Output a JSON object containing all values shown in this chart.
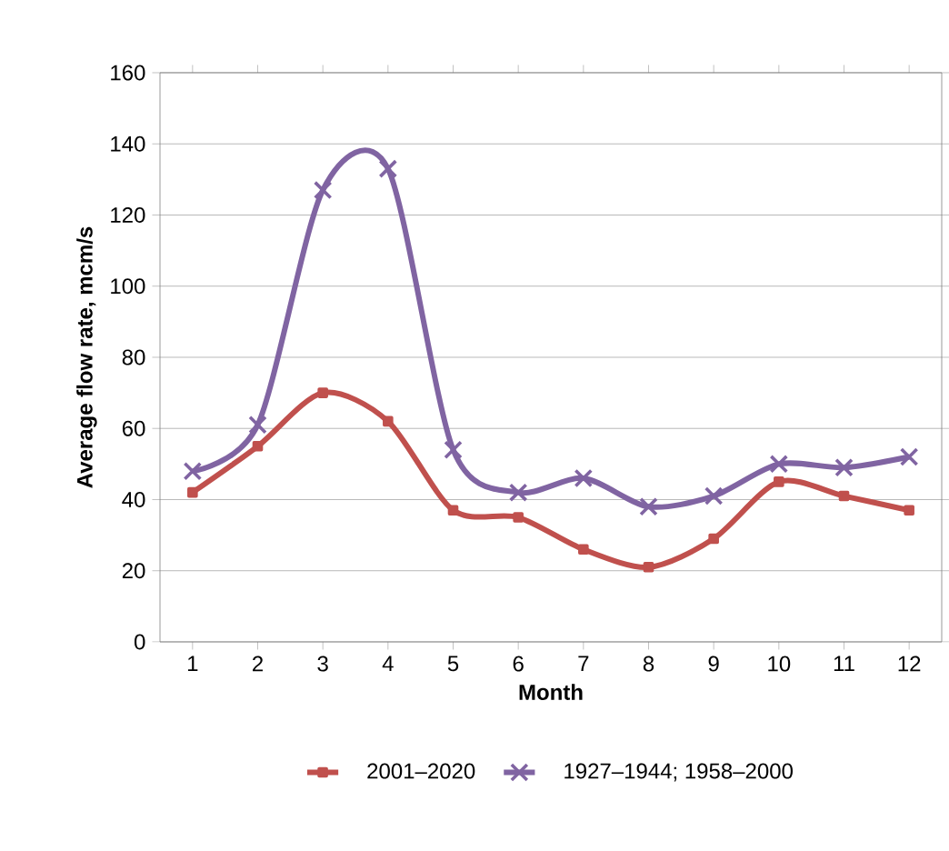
{
  "chart_data": {
    "type": "line",
    "xlabel": "Month",
    "ylabel": "Average flow rate, mcm/s",
    "categories": [
      "1",
      "2",
      "3",
      "4",
      "5",
      "6",
      "7",
      "8",
      "9",
      "10",
      "11",
      "12"
    ],
    "series": [
      {
        "name": "2001–2020",
        "color": "#c0504d",
        "marker": "square",
        "values": [
          42,
          55,
          70,
          62,
          37,
          35,
          26,
          21,
          29,
          45,
          41,
          37
        ]
      },
      {
        "name": "1927–1944; 1958–2000",
        "color": "#8064a2",
        "marker": "cross",
        "values": [
          48,
          61,
          127,
          133,
          54,
          42,
          46,
          38,
          41,
          50,
          49,
          52
        ]
      }
    ],
    "ylim": [
      0,
      160
    ],
    "yticks": [
      0,
      20,
      40,
      60,
      80,
      100,
      120,
      140,
      160
    ],
    "grid": "y",
    "legend": "bottom",
    "line_style": "solid"
  }
}
